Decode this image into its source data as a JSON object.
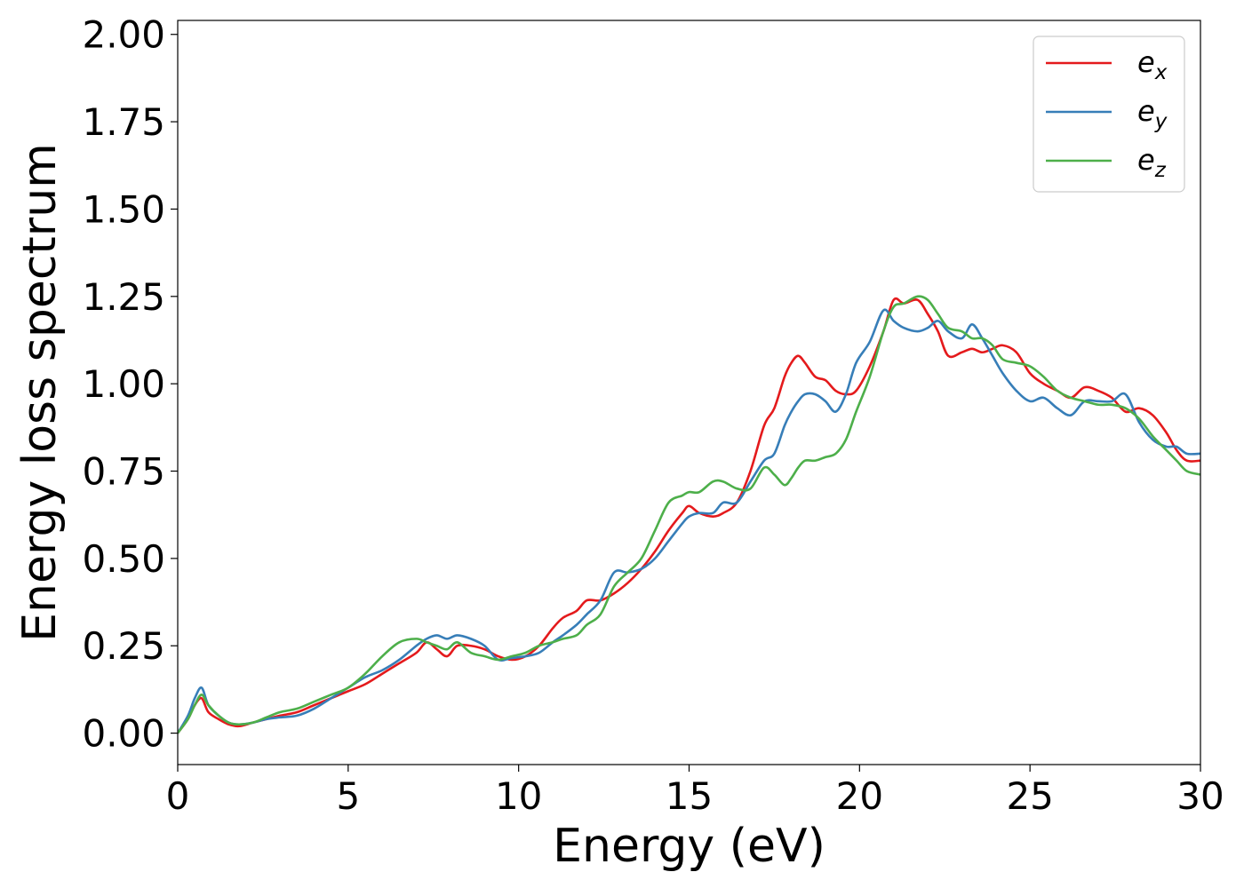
{
  "chart_data": {
    "type": "line",
    "title": "",
    "xlabel": "Energy (eV)",
    "ylabel": "Energy loss spectrum",
    "xlim": [
      0,
      30
    ],
    "ylim": [
      -0.09,
      2.04
    ],
    "xticks": [
      0,
      5,
      10,
      15,
      20,
      25,
      30
    ],
    "xtick_labels": [
      "0",
      "5",
      "10",
      "15",
      "20",
      "25",
      "30"
    ],
    "yticks": [
      0,
      0.25,
      0.5,
      0.75,
      1.0,
      1.25,
      1.5,
      1.75,
      2.0
    ],
    "ytick_labels": [
      "0.00",
      "0.25",
      "0.50",
      "0.75",
      "1.00",
      "1.25",
      "1.50",
      "1.75",
      "2.00"
    ],
    "grid": false,
    "legend_position": "top-right",
    "series": [
      {
        "name": "e_x",
        "label_base": "e",
        "label_sub": "x",
        "color": "#e41a1c",
        "x": [
          0,
          0.3,
          0.5,
          0.7,
          0.9,
          1.2,
          1.5,
          1.8,
          2.2,
          2.6,
          3.0,
          3.5,
          4.0,
          4.5,
          5.0,
          5.5,
          6.0,
          6.5,
          7.0,
          7.3,
          7.6,
          7.9,
          8.2,
          8.6,
          9.0,
          9.4,
          9.8,
          10.2,
          10.6,
          11.0,
          11.3,
          11.7,
          12.0,
          12.4,
          12.8,
          13.2,
          13.6,
          14.0,
          14.4,
          14.8,
          15.0,
          15.3,
          15.7,
          16.0,
          16.4,
          16.8,
          17.2,
          17.5,
          17.8,
          18.0,
          18.2,
          18.4,
          18.7,
          19.0,
          19.3,
          19.6,
          19.9,
          20.3,
          20.7,
          21.0,
          21.3,
          21.7,
          22.0,
          22.3,
          22.6,
          23.0,
          23.3,
          23.6,
          23.9,
          24.2,
          24.6,
          25.0,
          25.4,
          25.8,
          26.2,
          26.6,
          27.0,
          27.4,
          27.8,
          28.2,
          28.6,
          29.0,
          29.3,
          29.6,
          30.0
        ],
        "y": [
          0.0,
          0.04,
          0.08,
          0.1,
          0.06,
          0.04,
          0.025,
          0.02,
          0.03,
          0.04,
          0.05,
          0.06,
          0.08,
          0.1,
          0.12,
          0.14,
          0.17,
          0.2,
          0.23,
          0.26,
          0.24,
          0.22,
          0.25,
          0.25,
          0.24,
          0.22,
          0.21,
          0.22,
          0.25,
          0.3,
          0.33,
          0.35,
          0.38,
          0.38,
          0.4,
          0.43,
          0.47,
          0.52,
          0.58,
          0.63,
          0.65,
          0.63,
          0.62,
          0.63,
          0.66,
          0.75,
          0.88,
          0.93,
          1.02,
          1.06,
          1.08,
          1.06,
          1.02,
          1.01,
          0.98,
          0.97,
          0.98,
          1.05,
          1.15,
          1.24,
          1.23,
          1.24,
          1.2,
          1.15,
          1.08,
          1.09,
          1.1,
          1.09,
          1.1,
          1.11,
          1.09,
          1.03,
          1.0,
          0.98,
          0.96,
          0.99,
          0.98,
          0.96,
          0.92,
          0.93,
          0.91,
          0.86,
          0.81,
          0.78,
          0.78
        ]
      },
      {
        "name": "e_y",
        "label_base": "e",
        "label_sub": "y",
        "color": "#377eb8",
        "x": [
          0,
          0.3,
          0.5,
          0.7,
          0.9,
          1.2,
          1.5,
          1.8,
          2.2,
          2.6,
          3.0,
          3.5,
          4.0,
          4.5,
          5.0,
          5.5,
          6.0,
          6.5,
          7.0,
          7.3,
          7.6,
          7.9,
          8.2,
          8.6,
          9.0,
          9.4,
          9.8,
          10.2,
          10.6,
          11.0,
          11.3,
          11.7,
          12.0,
          12.4,
          12.8,
          13.2,
          13.6,
          14.0,
          14.4,
          14.8,
          15.0,
          15.3,
          15.7,
          16.0,
          16.4,
          16.8,
          17.2,
          17.5,
          17.8,
          18.0,
          18.2,
          18.4,
          18.7,
          19.0,
          19.3,
          19.6,
          19.9,
          20.3,
          20.7,
          21.0,
          21.3,
          21.7,
          22.0,
          22.3,
          22.6,
          23.0,
          23.3,
          23.6,
          23.9,
          24.2,
          24.6,
          25.0,
          25.4,
          25.8,
          26.2,
          26.6,
          27.0,
          27.4,
          27.8,
          28.2,
          28.6,
          29.0,
          29.3,
          29.6,
          30.0
        ],
        "y": [
          0.0,
          0.05,
          0.1,
          0.13,
          0.08,
          0.05,
          0.03,
          0.025,
          0.03,
          0.04,
          0.045,
          0.05,
          0.07,
          0.1,
          0.13,
          0.16,
          0.18,
          0.21,
          0.25,
          0.27,
          0.28,
          0.27,
          0.28,
          0.27,
          0.25,
          0.21,
          0.215,
          0.22,
          0.23,
          0.26,
          0.28,
          0.31,
          0.34,
          0.38,
          0.46,
          0.46,
          0.47,
          0.5,
          0.55,
          0.6,
          0.62,
          0.63,
          0.63,
          0.66,
          0.66,
          0.72,
          0.78,
          0.8,
          0.88,
          0.92,
          0.95,
          0.97,
          0.97,
          0.95,
          0.92,
          0.97,
          1.06,
          1.12,
          1.21,
          1.18,
          1.16,
          1.15,
          1.16,
          1.18,
          1.15,
          1.13,
          1.17,
          1.13,
          1.08,
          1.03,
          0.98,
          0.95,
          0.96,
          0.93,
          0.91,
          0.95,
          0.95,
          0.95,
          0.97,
          0.89,
          0.84,
          0.82,
          0.82,
          0.8,
          0.8
        ]
      },
      {
        "name": "e_z",
        "label_base": "e",
        "label_sub": "z",
        "color": "#4daf4a",
        "x": [
          0,
          0.3,
          0.5,
          0.7,
          0.9,
          1.2,
          1.5,
          1.8,
          2.2,
          2.6,
          3.0,
          3.5,
          4.0,
          4.5,
          5.0,
          5.5,
          6.0,
          6.5,
          7.0,
          7.3,
          7.6,
          7.9,
          8.2,
          8.6,
          9.0,
          9.4,
          9.8,
          10.2,
          10.6,
          11.0,
          11.3,
          11.7,
          12.0,
          12.4,
          12.8,
          13.2,
          13.6,
          14.0,
          14.4,
          14.8,
          15.0,
          15.3,
          15.7,
          16.0,
          16.4,
          16.8,
          17.2,
          17.5,
          17.8,
          18.0,
          18.2,
          18.4,
          18.7,
          19.0,
          19.3,
          19.6,
          19.9,
          20.3,
          20.7,
          21.0,
          21.3,
          21.7,
          22.0,
          22.3,
          22.6,
          23.0,
          23.3,
          23.6,
          23.9,
          24.2,
          24.6,
          25.0,
          25.4,
          25.8,
          26.2,
          26.6,
          27.0,
          27.4,
          27.8,
          28.2,
          28.6,
          29.0,
          29.3,
          29.6,
          30.0
        ],
        "y": [
          0.0,
          0.04,
          0.08,
          0.11,
          0.08,
          0.05,
          0.03,
          0.025,
          0.03,
          0.045,
          0.06,
          0.07,
          0.09,
          0.11,
          0.13,
          0.17,
          0.22,
          0.26,
          0.27,
          0.26,
          0.25,
          0.24,
          0.26,
          0.23,
          0.22,
          0.21,
          0.22,
          0.23,
          0.25,
          0.26,
          0.27,
          0.28,
          0.31,
          0.34,
          0.42,
          0.46,
          0.5,
          0.58,
          0.66,
          0.68,
          0.69,
          0.69,
          0.72,
          0.72,
          0.7,
          0.7,
          0.76,
          0.74,
          0.71,
          0.73,
          0.76,
          0.78,
          0.78,
          0.79,
          0.8,
          0.84,
          0.92,
          1.02,
          1.15,
          1.22,
          1.23,
          1.25,
          1.24,
          1.2,
          1.16,
          1.15,
          1.13,
          1.13,
          1.11,
          1.07,
          1.06,
          1.05,
          1.02,
          0.98,
          0.96,
          0.95,
          0.94,
          0.94,
          0.93,
          0.9,
          0.85,
          0.81,
          0.78,
          0.75,
          0.74
        ]
      }
    ]
  }
}
